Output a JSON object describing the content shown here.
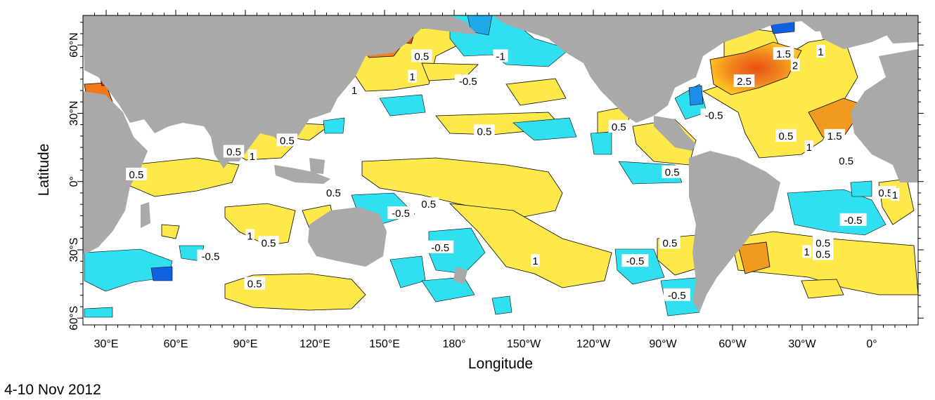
{
  "map": {
    "xlabel": "Longitude",
    "ylabel": "Latitude",
    "caption": "4-10 Nov 2012",
    "colors": {
      "land": "#a9a9a9",
      "ocean_neutral": "#ffffff",
      "pos_low": "#ffe84a",
      "pos_mid": "#ffc020",
      "pos_high": "#f07818",
      "pos_max": "#e83010",
      "neg_low": "#30e0f0",
      "neg_mid": "#20a8e8",
      "neg_high": "#1060e0",
      "contour": "#000000"
    },
    "x_ticks": [
      {
        "lon": 30,
        "label": "30°E"
      },
      {
        "lon": 60,
        "label": "60°E"
      },
      {
        "lon": 90,
        "label": "90°E"
      },
      {
        "lon": 120,
        "label": "120°E"
      },
      {
        "lon": 150,
        "label": "150°E"
      },
      {
        "lon": 180,
        "label": "180°"
      },
      {
        "lon": 210,
        "label": "150°W"
      },
      {
        "lon": 240,
        "label": "120°W"
      },
      {
        "lon": 270,
        "label": "90°W"
      },
      {
        "lon": 300,
        "label": "60°W"
      },
      {
        "lon": 330,
        "label": "30°W"
      },
      {
        "lon": 360,
        "label": "0°"
      }
    ],
    "y_ticks": [
      {
        "lat": 60,
        "label": "60°N"
      },
      {
        "lat": 30,
        "label": "30°N"
      },
      {
        "lat": 0,
        "label": "0°"
      },
      {
        "lat": -30,
        "label": "30°S"
      },
      {
        "lat": -60,
        "label": "60°S"
      }
    ],
    "contour_labels": [
      {
        "lon": 166,
        "lat": 55,
        "text": "0.5"
      },
      {
        "lon": 200,
        "lat": 55,
        "text": "-1"
      },
      {
        "lon": 186,
        "lat": 44,
        "text": "-0.5"
      },
      {
        "lon": 137,
        "lat": 40,
        "text": "1"
      },
      {
        "lon": 162,
        "lat": 46,
        "text": "1"
      },
      {
        "lon": 108,
        "lat": 18,
        "text": "0.5"
      },
      {
        "lon": 85,
        "lat": 13,
        "text": "0.5"
      },
      {
        "lon": 93,
        "lat": 11,
        "text": "1"
      },
      {
        "lon": 43,
        "lat": 3,
        "text": "0.5"
      },
      {
        "lon": 128,
        "lat": -5,
        "text": "0.5"
      },
      {
        "lon": 157,
        "lat": -14,
        "text": "-0.5"
      },
      {
        "lon": 169,
        "lat": -10,
        "text": "0.5"
      },
      {
        "lon": 193,
        "lat": 22,
        "text": "0.5"
      },
      {
        "lon": 251,
        "lat": 24,
        "text": "0.5"
      },
      {
        "lon": 274,
        "lat": 4,
        "text": "0.5"
      },
      {
        "lon": 92,
        "lat": -24,
        "text": "1"
      },
      {
        "lon": 100,
        "lat": -27,
        "text": "0.5"
      },
      {
        "lon": 174,
        "lat": -29,
        "text": "-0.5"
      },
      {
        "lon": 75,
        "lat": -33,
        "text": "-0.5"
      },
      {
        "lon": 215,
        "lat": -35,
        "text": "1"
      },
      {
        "lon": 258,
        "lat": -35,
        "text": "-0.5"
      },
      {
        "lon": 94,
        "lat": -45,
        "text": "0.5"
      },
      {
        "lon": 273,
        "lat": -27,
        "text": "0.5"
      },
      {
        "lon": 276,
        "lat": -50,
        "text": "-0.5"
      },
      {
        "lon": 322,
        "lat": 56,
        "text": "1.5"
      },
      {
        "lon": 327,
        "lat": 51,
        "text": "2"
      },
      {
        "lon": 338,
        "lat": 57,
        "text": "1"
      },
      {
        "lon": 305,
        "lat": 44,
        "text": "2.5"
      },
      {
        "lon": 292,
        "lat": 29,
        "text": "-0.5"
      },
      {
        "lon": 323,
        "lat": 20,
        "text": "0.5"
      },
      {
        "lon": 344,
        "lat": 20,
        "text": "1.5"
      },
      {
        "lon": 333,
        "lat": 15,
        "text": "1"
      },
      {
        "lon": 349,
        "lat": 9,
        "text": "0.5"
      },
      {
        "lon": 366,
        "lat": -5,
        "text": "0.5"
      },
      {
        "lon": 370,
        "lat": -6,
        "text": "1"
      },
      {
        "lon": 352,
        "lat": -17,
        "text": "-0.5"
      },
      {
        "lon": 339,
        "lat": -27,
        "text": "0.5"
      },
      {
        "lon": 332,
        "lat": -31,
        "text": "1"
      },
      {
        "lon": 339,
        "lat": -32,
        "text": "0.5"
      }
    ]
  }
}
